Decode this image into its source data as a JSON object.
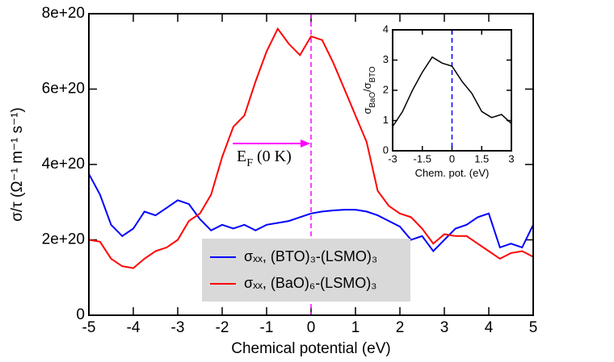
{
  "chart_data": [
    {
      "type": "line",
      "x_label": "Chemical potential (eV)",
      "y_label": "σ/τ (Ω⁻¹ m⁻¹ s⁻¹)",
      "x": [
        -5,
        -4.75,
        -4.5,
        -4.25,
        -4,
        -3.75,
        -3.5,
        -3.25,
        -3,
        -2.75,
        -2.5,
        -2.25,
        -2,
        -1.75,
        -1.5,
        -1.25,
        -1,
        -0.75,
        -0.5,
        -0.25,
        0,
        0.25,
        0.5,
        0.75,
        1,
        1.25,
        1.5,
        1.75,
        2,
        2.25,
        2.5,
        2.75,
        3,
        3.25,
        3.5,
        3.75,
        4,
        4.25,
        4.5,
        4.75,
        5
      ],
      "series": [
        {
          "name": "σₓₓ, (BTO)₃-(LSMO)₃",
          "color": "#0000ff",
          "values": [
            3.75e+20,
            3.2e+20,
            2.4e+20,
            2.1e+20,
            2.3e+20,
            2.75e+20,
            2.65e+20,
            2.85e+20,
            3.05e+20,
            2.95e+20,
            2.55e+20,
            2.25e+20,
            2.4e+20,
            2.3e+20,
            2.4e+20,
            2.25e+20,
            2.4e+20,
            2.45e+20,
            2.5e+20,
            2.6e+20,
            2.7e+20,
            2.75e+20,
            2.78e+20,
            2.8e+20,
            2.8e+20,
            2.75e+20,
            2.65e+20,
            2.5e+20,
            2.35e+20,
            2e+20,
            2.1e+20,
            1.7e+20,
            2e+20,
            2.3e+20,
            2.4e+20,
            2.6e+20,
            2.7e+20,
            1.8e+20,
            1.9e+20,
            1.8e+20,
            2.4e+20
          ]
        },
        {
          "name": "σₓₓ, (BaO)₆-(LSMO)₃",
          "color": "#ff0000",
          "values": [
            2e+20,
            1.95e+20,
            1.5e+20,
            1.3e+20,
            1.25e+20,
            1.5e+20,
            1.7e+20,
            1.8e+20,
            2e+20,
            2.5e+20,
            2.7e+20,
            3.2e+20,
            4.2e+20,
            5e+20,
            5.3e+20,
            6.2e+20,
            7e+20,
            7.6e+20,
            7.2e+20,
            6.9e+20,
            7.4e+20,
            7.3e+20,
            6.7e+20,
            6e+20,
            5.3e+20,
            4.6e+20,
            3.3e+20,
            2.9e+20,
            2.7e+20,
            2.6e+20,
            2.3e+20,
            1.9e+20,
            2.15e+20,
            2.1e+20,
            2.1e+20,
            1.9e+20,
            1.7e+20,
            1.5e+20,
            1.65e+20,
            1.7e+20,
            1.55e+20
          ]
        }
      ],
      "xlim": [
        -5,
        5
      ],
      "xticks": [
        -5,
        -4,
        -3,
        -2,
        -1,
        0,
        1,
        2,
        3,
        4,
        5
      ],
      "ylim": [
        0,
        8e+20
      ],
      "yticks": [
        0,
        {
          "value": 2e+20,
          "label": "2e+20"
        },
        {
          "value": 4e+20,
          "label": "4e+20"
        },
        {
          "value": 6e+20,
          "label": "6e+20"
        },
        {
          "value": 8e+20,
          "label": "8e+20"
        }
      ],
      "vline": 0,
      "vline_color": "#ff00ff",
      "annotation": [
        "E",
        "F",
        " (0 K)"
      ],
      "annotation_color": "#ff00ff",
      "legend": "lower center"
    },
    {
      "type": "line",
      "x_label": "Chem. pot. (eV)",
      "y_label": [
        "σ",
        "BaO",
        "/σ",
        "BTO"
      ],
      "x": [
        -3,
        -2.5,
        -2,
        -1.5,
        -1,
        -0.5,
        0,
        0.5,
        1,
        1.5,
        2,
        2.5,
        3
      ],
      "series": [
        {
          "color": "#000000",
          "values": [
            0.8,
            1.3,
            2.0,
            2.6,
            3.1,
            2.9,
            2.8,
            2.3,
            1.9,
            1.3,
            1.1,
            1.2,
            0.9
          ]
        }
      ],
      "xlim": [
        -3,
        3
      ],
      "xticks": [
        -3,
        -1.5,
        0,
        1.5,
        3
      ],
      "ylim": [
        0,
        4
      ],
      "yticks": [
        0,
        1,
        2,
        3,
        4
      ],
      "vline": 0,
      "vline_color": "#0000ff"
    }
  ]
}
